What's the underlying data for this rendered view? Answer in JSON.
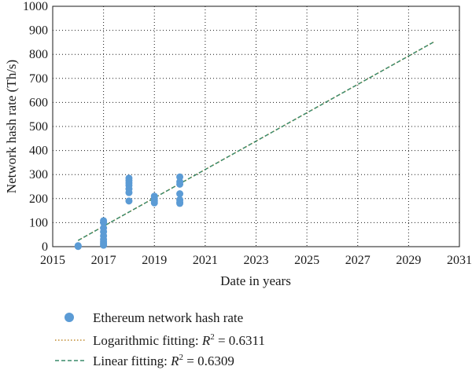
{
  "chart_data": {
    "type": "scatter",
    "xlabel": "Date in years",
    "ylabel": "Network hash rate (Th/s)",
    "xlim": [
      2015,
      2031
    ],
    "ylim": [
      0,
      1000
    ],
    "xticks": [
      2015,
      2017,
      2019,
      2021,
      2023,
      2025,
      2027,
      2029,
      2031
    ],
    "yticks": [
      0,
      100,
      200,
      300,
      400,
      500,
      600,
      700,
      800,
      900,
      1000
    ],
    "grid": true,
    "legend_position": "bottom",
    "series": [
      {
        "name": "Ethereum network hash rate",
        "kind": "scatter",
        "color": "#5b9bd5",
        "points": [
          [
            2016.0,
            4
          ],
          [
            2016.0,
            2
          ],
          [
            2016.0,
            1
          ],
          [
            2017.0,
            108
          ],
          [
            2017.0,
            100
          ],
          [
            2017.0,
            78
          ],
          [
            2017.0,
            62
          ],
          [
            2017.0,
            45
          ],
          [
            2017.0,
            30
          ],
          [
            2017.0,
            20
          ],
          [
            2017.0,
            12
          ],
          [
            2017.0,
            6
          ],
          [
            2018.0,
            285
          ],
          [
            2018.0,
            275
          ],
          [
            2018.0,
            265
          ],
          [
            2018.0,
            255
          ],
          [
            2018.0,
            240
          ],
          [
            2018.0,
            225
          ],
          [
            2018.0,
            190
          ],
          [
            2019.0,
            210
          ],
          [
            2019.0,
            200
          ],
          [
            2019.0,
            190
          ],
          [
            2019.0,
            182
          ],
          [
            2020.0,
            290
          ],
          [
            2020.0,
            270
          ],
          [
            2020.0,
            260
          ],
          [
            2020.0,
            220
          ],
          [
            2020.0,
            195
          ],
          [
            2020.0,
            185
          ],
          [
            2020.0,
            180
          ]
        ]
      },
      {
        "name": "Logarithmic fitting: R² = 0.6311",
        "kind": "line",
        "style": "dotted",
        "color": "#c08a2e",
        "x": [
          2016.0,
          2030.0
        ],
        "y": [
          26,
          852
        ]
      },
      {
        "name": "Linear fitting: R² = 0.6309",
        "kind": "line",
        "style": "dashed",
        "color": "#3a8a6a",
        "x": [
          2016.0,
          2030.0
        ],
        "y": [
          26,
          852
        ]
      }
    ],
    "legend": {
      "scatter_label": "Ethereum network hash rate",
      "log_label_prefix": "Logarithmic fitting: ",
      "log_r2_value": " = 0.6311",
      "lin_label_prefix": "Linear fitting: ",
      "lin_r2_value": " = 0.6309",
      "r2_symbol": "R",
      "r2_superscript": "2"
    }
  }
}
